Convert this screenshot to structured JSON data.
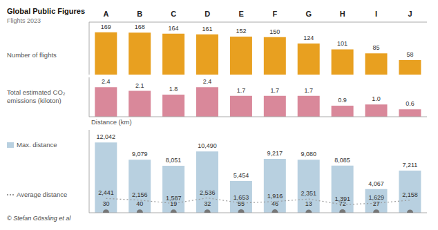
{
  "chart_data": [
    {
      "type": "bar",
      "title": "Global Public Figures",
      "subtitle": "Flights 2023",
      "ylabel": "Number of flights",
      "categories": [
        "A",
        "B",
        "C",
        "D",
        "E",
        "F",
        "G",
        "H",
        "I",
        "J"
      ],
      "values": [
        169,
        168,
        164,
        161,
        152,
        150,
        124,
        101,
        85,
        58
      ],
      "color": "#E8A020",
      "ylim": [
        0,
        210
      ],
      "data_labels": true,
      "tick_labels": "x"
    },
    {
      "type": "bar",
      "ylabel": "Total estimated CO₂\nemissions (kiloton)",
      "categories": [
        "A",
        "B",
        "C",
        "D",
        "E",
        "F",
        "G",
        "H",
        "I",
        "J"
      ],
      "values": [
        2.4,
        2.1,
        1.8,
        2.4,
        1.7,
        1.7,
        1.7,
        0.9,
        1.0,
        0.6
      ],
      "value_labels": [
        "2.4",
        "2.1",
        "1.8",
        "2.4",
        "1.7",
        "1.7",
        "1.7",
        "0.9",
        "1.0",
        "0.6"
      ],
      "color": "#D9889A",
      "ylim": [
        0,
        3.2
      ],
      "data_labels": true,
      "tick_labels": false
    },
    {
      "type": "bar",
      "ylabel": "Distance (km)",
      "categories": [
        "A",
        "B",
        "C",
        "D",
        "E",
        "F",
        "G",
        "H",
        "I",
        "J"
      ],
      "series": [
        {
          "name": "Max. distance",
          "type": "bar",
          "color": "#B8D0E0",
          "values": [
            12042,
            9079,
            8051,
            10490,
            5454,
            9217,
            9080,
            8085,
            4067,
            7211
          ],
          "value_labels": [
            "12,042",
            "9,079",
            "8,051",
            "10,490",
            "5,454",
            "9,217",
            "9,080",
            "8,085",
            "4,067",
            "7,211"
          ]
        },
        {
          "name": "Average distance",
          "type": "line",
          "line_style": "dotted",
          "color": "#999999",
          "values": [
            2441,
            2156,
            1587,
            2536,
            1653,
            1916,
            2351,
            1391,
            1629,
            2158
          ],
          "value_labels": [
            "2,441",
            "2,156",
            "1,587",
            "2,536",
            "1,653",
            "1,916",
            "2,351",
            "1,391",
            "1,629",
            "2,158"
          ]
        },
        {
          "type": "scatter",
          "marker": "circle",
          "color": "#777777",
          "values": [
            30,
            40,
            19,
            32,
            55,
            46,
            13,
            72,
            27,
            0
          ],
          "value_labels": [
            "30",
            "40",
            "19",
            "32",
            "55",
            "46",
            "13",
            "72",
            "27",
            null
          ]
        }
      ],
      "ylim": [
        0,
        14200
      ],
      "data_labels": true,
      "tick_labels": false,
      "annotations": [
        "© Stefan Gössling et al"
      ]
    }
  ]
}
